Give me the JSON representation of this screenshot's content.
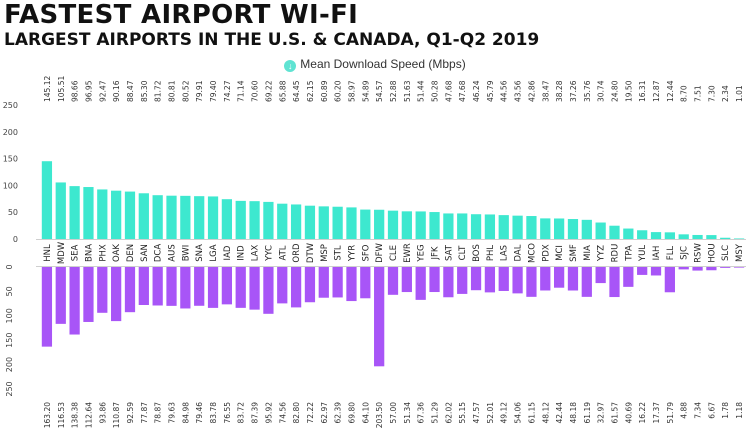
{
  "header": {
    "title": "FASTEST AIRPORT WI-FI",
    "subtitle": "LARGEST AIRPORTS IN THE U.S. & CANADA, Q1-Q2 2019"
  },
  "legend": {
    "download_label": "Mean Download Speed (Mbps)"
  },
  "colors": {
    "download": "#3de8cf",
    "upload": "#a855f7"
  },
  "chart_data": {
    "type": "bar",
    "categories": [
      "HNL",
      "MDW",
      "SEA",
      "BNA",
      "PHX",
      "OAK",
      "DEN",
      "SAN",
      "DCA",
      "AUS",
      "BWI",
      "SNA",
      "LGA",
      "IAD",
      "IND",
      "LAX",
      "YYC",
      "ATL",
      "ORD",
      "DTW",
      "MSP",
      "STL",
      "YYR",
      "SFO",
      "DFW",
      "CLE",
      "EWR",
      "YEG",
      "JFK",
      "SAT",
      "CLT",
      "BOS",
      "PHL",
      "LAS",
      "DAL",
      "MCO",
      "PDX",
      "MCI",
      "SMF",
      "MIA",
      "YYZ",
      "RDU",
      "TPA",
      "YUL",
      "IAH",
      "FLL",
      "SJC",
      "RSW",
      "HOU",
      "SLC",
      "MSY"
    ],
    "series": [
      {
        "name": "Mean Download Speed (Mbps)",
        "values": [
          145.12,
          105.51,
          98.66,
          96.95,
          92.47,
          90.16,
          88.47,
          85.3,
          81.72,
          80.81,
          80.52,
          79.91,
          79.4,
          74.27,
          71.14,
          70.6,
          69.22,
          65.88,
          64.45,
          62.15,
          60.89,
          60.2,
          58.97,
          54.89,
          54.57,
          52.88,
          51.63,
          51.44,
          50.28,
          47.68,
          47.68,
          46.24,
          45.79,
          44.56,
          43.56,
          42.86,
          38.47,
          38.28,
          37.26,
          35.76,
          30.74,
          24.8,
          19.5,
          16.31,
          12.87,
          12.44,
          8.7,
          7.51,
          7.3,
          2.34,
          1.01
        ]
      },
      {
        "values": [
          163.2,
          116.53,
          138.38,
          112.64,
          93.86,
          110.87,
          92.59,
          77.87,
          78.87,
          79.63,
          84.98,
          79.46,
          83.78,
          76.55,
          83.72,
          87.39,
          95.92,
          74.56,
          82.8,
          72.22,
          62.97,
          62.39,
          69.8,
          64.1,
          203.5,
          57.0,
          51.34,
          67.36,
          51.29,
          62.02,
          55.15,
          47.57,
          52.01,
          49.12,
          54.06,
          61.15,
          48.12,
          42.44,
          48.18,
          61.19,
          32.97,
          61.57,
          40.69,
          16.22,
          17.37,
          51.79,
          4.88,
          7.34,
          6.67,
          1.78,
          1.18
        ]
      }
    ],
    "top_axis": {
      "ticks": [
        0,
        50,
        100,
        150,
        200,
        250
      ],
      "range": [
        0,
        250
      ]
    },
    "bottom_axis": {
      "ticks": [
        0,
        50,
        100,
        150,
        200,
        250
      ],
      "range": [
        0,
        250
      ]
    },
    "grid": false,
    "legend": "top-center"
  }
}
